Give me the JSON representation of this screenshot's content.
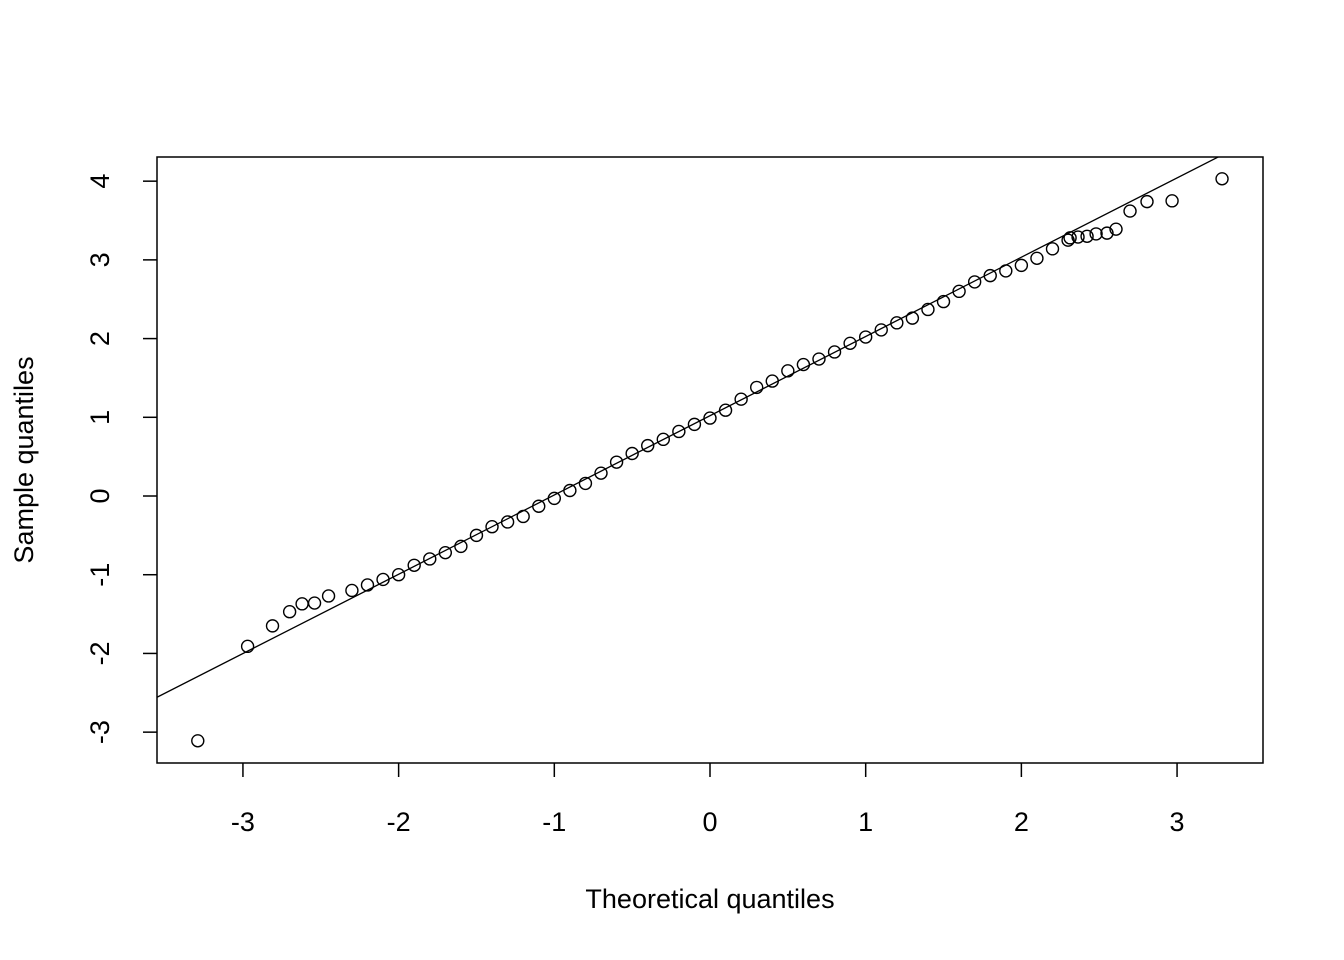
{
  "chart_data": {
    "type": "scatter",
    "x_label": "Theoretical quantiles",
    "y_label": "Sample quantiles",
    "xlim": [
      -3.552,
      3.552
    ],
    "ylim": [
      -3.392,
      4.307
    ],
    "xticks": [
      -3,
      -2,
      -1,
      0,
      1,
      2,
      3
    ],
    "yticks": [
      -3,
      -2,
      -1,
      0,
      1,
      2,
      3,
      4
    ],
    "color": "#000000",
    "x": [
      -3.29,
      -2.97,
      -2.81,
      -2.7,
      -2.62,
      -2.54,
      -2.45,
      -2.3,
      -2.2,
      -2.1,
      -2.0,
      -1.9,
      -1.8,
      -1.7,
      -1.6,
      -1.5,
      -1.4,
      -1.3,
      -1.2,
      -1.1,
      -1.0,
      -0.9,
      -0.8,
      -0.7,
      -0.6,
      -0.5,
      -0.4,
      -0.3,
      -0.2,
      -0.1,
      0.0,
      0.1,
      0.2,
      0.3,
      0.4,
      0.5,
      0.6,
      0.7,
      0.8,
      0.9,
      1.0,
      1.1,
      1.2,
      1.3,
      1.4,
      1.5,
      1.6,
      1.7,
      1.8,
      1.9,
      2.0,
      2.1,
      2.2,
      2.3,
      2.313,
      2.364,
      2.422,
      2.48,
      2.55,
      2.608,
      2.698,
      2.807,
      2.968,
      3.289
    ],
    "values": [
      -3.11,
      -1.91,
      -1.65,
      -1.47,
      -1.37,
      -1.36,
      -1.27,
      -1.2,
      -1.13,
      -1.06,
      -1.0,
      -0.88,
      -0.8,
      -0.72,
      -0.64,
      -0.5,
      -0.39,
      -0.33,
      -0.26,
      -0.13,
      -0.03,
      0.07,
      0.16,
      0.29,
      0.43,
      0.54,
      0.64,
      0.72,
      0.82,
      0.91,
      0.99,
      1.09,
      1.23,
      1.38,
      1.46,
      1.59,
      1.67,
      1.74,
      1.83,
      1.94,
      2.02,
      2.11,
      2.2,
      2.26,
      2.37,
      2.47,
      2.6,
      2.72,
      2.8,
      2.86,
      2.93,
      3.02,
      3.14,
      3.25,
      3.28,
      3.29,
      3.3,
      3.33,
      3.34,
      3.39,
      3.62,
      3.74,
      3.75,
      4.03
    ],
    "reference_line": {
      "intercept": 1.02,
      "slope": 1.007
    }
  }
}
